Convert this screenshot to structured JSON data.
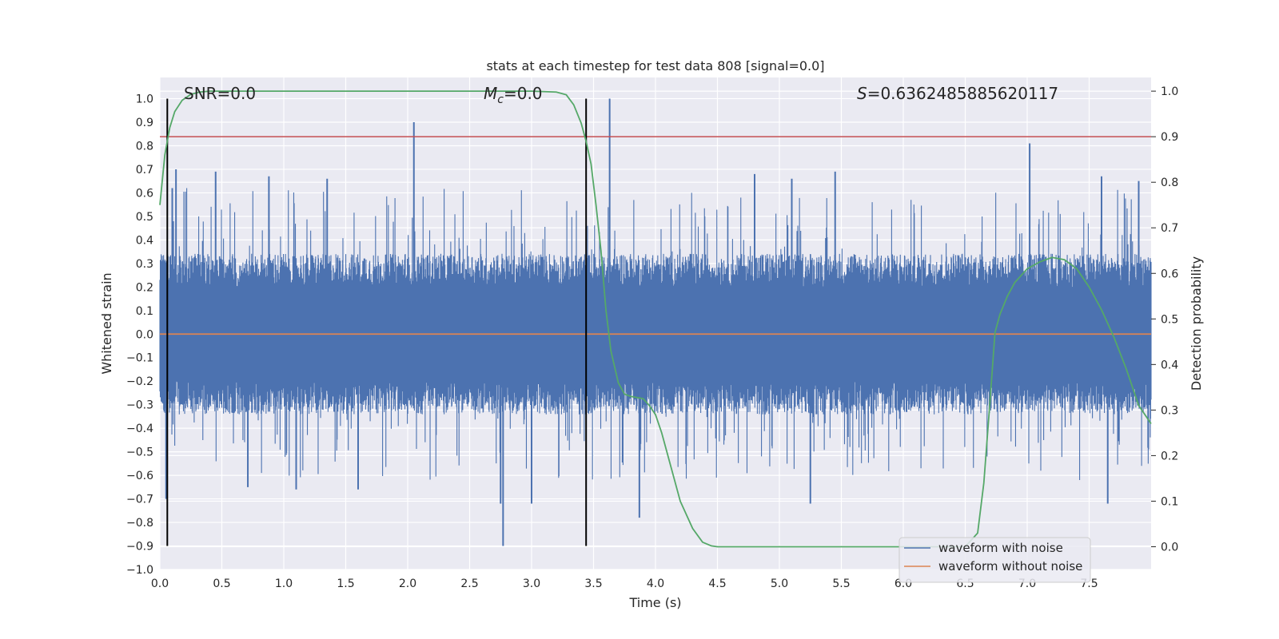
{
  "chart_data": {
    "type": "line",
    "title": "stats at each timestep for test data 808 [signal=0.0]",
    "xlabel": "Time (s)",
    "ylabel": "Whitened strain",
    "ylabel_right": "Detection probability",
    "xlim": [
      0.0,
      8.0
    ],
    "ylim": [
      -1.0,
      1.09
    ],
    "ylim_right": [
      -0.05,
      1.03
    ],
    "x_ticks": [
      0.0,
      0.5,
      1.0,
      1.5,
      2.0,
      2.5,
      3.0,
      3.5,
      4.0,
      4.5,
      5.0,
      5.5,
      6.0,
      6.5,
      7.0,
      7.5
    ],
    "x_tick_labels": [
      "0.0",
      "0.5",
      "1.0",
      "1.5",
      "2.0",
      "2.5",
      "3.0",
      "3.5",
      "4.0",
      "4.5",
      "5.0",
      "5.5",
      "6.0",
      "6.5",
      "7.0",
      "7.5"
    ],
    "y_ticks": [
      -1.0,
      -0.9,
      -0.8,
      -0.7,
      -0.6,
      -0.5,
      -0.4,
      -0.3,
      -0.2,
      -0.1,
      0.0,
      0.1,
      0.2,
      0.3,
      0.4,
      0.5,
      0.6,
      0.7,
      0.8,
      0.9,
      1.0
    ],
    "y_tick_labels": [
      "−1.0",
      "−0.9",
      "−0.8",
      "−0.7",
      "−0.6",
      "−0.5",
      "−0.4",
      "−0.3",
      "−0.2",
      "−0.1",
      "0.0",
      "0.1",
      "0.2",
      "0.3",
      "0.4",
      "0.5",
      "0.6",
      "0.7",
      "0.8",
      "0.9",
      "1.0"
    ],
    "y_right_ticks": [
      0.0,
      0.1,
      0.2,
      0.3,
      0.4,
      0.5,
      0.6,
      0.7,
      0.8,
      0.9,
      1.0
    ],
    "y_right_tick_labels": [
      "0.0",
      "0.1",
      "0.2",
      "0.3",
      "0.4",
      "0.5",
      "0.6",
      "0.7",
      "0.8",
      "0.9",
      "1.0"
    ],
    "grid": true,
    "annotations": {
      "snr": "SNR=0.0",
      "mc_symbol": "M",
      "mc_sub": "c",
      "mc_value": "=0.0",
      "s_symbol": "S",
      "s_value": "=0.6362485885620117"
    },
    "threshold_right": 0.9,
    "vertical_lines_x": [
      0.06,
      3.44
    ],
    "vertical_lines_ylim": [
      -0.9,
      1.0
    ],
    "series": [
      {
        "name": "waveform with noise",
        "color": "#4c72b0",
        "noise_envelope": {
          "base_upper": 0.35,
          "base_lower": -0.35,
          "seed": 808
        },
        "spikes": [
          {
            "x": 0.1,
            "y": 0.62
          },
          {
            "x": 0.13,
            "y": 0.7
          },
          {
            "x": 0.45,
            "y": 0.69
          },
          {
            "x": 0.88,
            "y": 0.67
          },
          {
            "x": 1.35,
            "y": 0.66
          },
          {
            "x": 2.05,
            "y": 0.9
          },
          {
            "x": 3.63,
            "y": 1.0
          },
          {
            "x": 4.8,
            "y": 0.68
          },
          {
            "x": 5.1,
            "y": 0.66
          },
          {
            "x": 5.45,
            "y": 0.69
          },
          {
            "x": 7.02,
            "y": 0.81
          },
          {
            "x": 7.6,
            "y": 0.67
          },
          {
            "x": 7.9,
            "y": 0.65
          },
          {
            "x": 0.05,
            "y": -0.7
          },
          {
            "x": 2.77,
            "y": -0.9
          },
          {
            "x": 3.87,
            "y": -0.78
          },
          {
            "x": 2.75,
            "y": -0.72
          },
          {
            "x": 5.25,
            "y": -0.72
          },
          {
            "x": 7.65,
            "y": -0.72
          },
          {
            "x": 1.1,
            "y": -0.66
          },
          {
            "x": 0.71,
            "y": -0.65
          },
          {
            "x": 1.6,
            "y": -0.66
          },
          {
            "x": 3.0,
            "y": -0.72
          }
        ]
      },
      {
        "name": "waveform without noise",
        "color": "#dd8452",
        "x": [
          0.0,
          8.0
        ],
        "y": [
          0.0,
          0.0
        ]
      },
      {
        "name": "detection probability",
        "color": "#55a868",
        "axis": "right",
        "x": [
          0.0,
          0.04,
          0.08,
          0.12,
          0.18,
          0.25,
          0.32,
          0.4,
          0.5,
          1.0,
          2.0,
          3.0,
          3.2,
          3.28,
          3.34,
          3.4,
          3.44,
          3.48,
          3.52,
          3.56,
          3.6,
          3.64,
          3.7,
          3.75,
          3.8,
          3.9,
          3.95,
          4.0,
          4.05,
          4.1,
          4.2,
          4.3,
          4.38,
          4.45,
          4.5,
          4.6,
          5.0,
          6.0,
          6.5,
          6.6,
          6.65,
          6.7,
          6.74,
          6.78,
          6.84,
          6.9,
          7.0,
          7.1,
          7.2,
          7.3,
          7.4,
          7.5,
          7.6,
          7.7,
          7.8,
          7.9,
          8.0
        ],
        "y": [
          0.75,
          0.86,
          0.92,
          0.955,
          0.98,
          0.993,
          0.998,
          1.0,
          1.0,
          1.0,
          1.0,
          1.0,
          0.998,
          0.992,
          0.97,
          0.93,
          0.89,
          0.84,
          0.75,
          0.65,
          0.52,
          0.43,
          0.36,
          0.335,
          0.33,
          0.325,
          0.31,
          0.29,
          0.25,
          0.2,
          0.1,
          0.04,
          0.01,
          0.002,
          0.0,
          0.0,
          0.0,
          0.0,
          0.0,
          0.03,
          0.14,
          0.32,
          0.47,
          0.51,
          0.55,
          0.58,
          0.61,
          0.625,
          0.635,
          0.63,
          0.61,
          0.57,
          0.52,
          0.46,
          0.39,
          0.31,
          0.27
        ]
      }
    ],
    "legend": {
      "position": "bottom-right",
      "entries": [
        "waveform with noise",
        "waveform without noise"
      ]
    },
    "colors": {
      "background": "#eaeaf2",
      "grid": "#ffffff",
      "threshold": "#c44e52",
      "vertical": "#000000"
    }
  }
}
